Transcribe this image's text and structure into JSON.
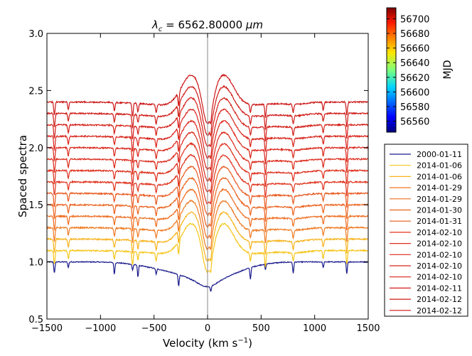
{
  "chart_data": {
    "type": "line",
    "title_prefix": "λ",
    "title_sub": "c",
    "title_rest": " = 6562.80000 ",
    "title_unit": "μm",
    "xlabel": "Velocity (km s",
    "xlabel_sup": "−1",
    "xlabel_end": ")",
    "ylabel": "Spaced spectra",
    "xlim": [
      -1500,
      1500
    ],
    "ylim": [
      0.5,
      3.0
    ],
    "xticks": [
      -1500,
      -1000,
      -500,
      0,
      500,
      1000,
      1500
    ],
    "xtick_labels": [
      "−1500",
      "−1000",
      "−500",
      "0",
      "500",
      "1000",
      "1500"
    ],
    "yticks": [
      0.5,
      1.0,
      1.5,
      2.0,
      2.5,
      3.0
    ],
    "ytick_labels": [
      "0.5",
      "1.0",
      "1.5",
      "2.0",
      "2.5",
      "3.0"
    ],
    "vertical_line_x": 0,
    "colorbar": {
      "label": "MJD",
      "range": [
        56545,
        56715
      ],
      "ticks": [
        56560,
        56580,
        56600,
        56620,
        56640,
        56660,
        56680,
        56700
      ],
      "tick_labels": [
        "56560",
        "56580",
        "56600",
        "56620",
        "56640",
        "56660",
        "56680",
        "56700"
      ]
    },
    "series": [
      {
        "name": "2000-01-11",
        "color": "#1a1a8c",
        "offset": 1.0,
        "type": "photospheric"
      },
      {
        "name": "2014-01-06",
        "color": "#f5c518",
        "offset": 1.1,
        "type": "emission"
      },
      {
        "name": "2014-01-06",
        "color": "#f7b21a",
        "offset": 1.2,
        "type": "emission"
      },
      {
        "name": "2014-01-29",
        "color": "#ef7a22",
        "offset": 1.3,
        "type": "emission"
      },
      {
        "name": "2014-01-29",
        "color": "#ef6e22",
        "offset": 1.4,
        "type": "emission"
      },
      {
        "name": "2014-01-30",
        "color": "#ec6420",
        "offset": 1.5,
        "type": "emission"
      },
      {
        "name": "2014-01-31",
        "color": "#e9581e",
        "offset": 1.6,
        "type": "emission"
      },
      {
        "name": "2014-02-10",
        "color": "#e0321c",
        "offset": 1.7,
        "type": "emission"
      },
      {
        "name": "2014-02-10",
        "color": "#de2e1b",
        "offset": 1.8,
        "type": "emission"
      },
      {
        "name": "2014-02-10",
        "color": "#dc2a1a",
        "offset": 1.9,
        "type": "emission"
      },
      {
        "name": "2014-02-10",
        "color": "#da2619",
        "offset": 2.0,
        "type": "emission"
      },
      {
        "name": "2014-02-10",
        "color": "#d82218",
        "offset": 2.1,
        "type": "emission"
      },
      {
        "name": "2014-02-11",
        "color": "#d41e17",
        "offset": 2.2,
        "type": "emission"
      },
      {
        "name": "2014-02-12",
        "color": "#cf1a16",
        "offset": 2.3,
        "type": "emission"
      },
      {
        "name": "2014-02-12",
        "color": "#cc1615",
        "offset": 2.4,
        "type": "emission"
      }
    ],
    "absorption_lines": [
      -1430,
      -1300,
      -870,
      -700,
      -650,
      -480,
      -270,
      30,
      400,
      540,
      800,
      1080,
      1300
    ]
  }
}
